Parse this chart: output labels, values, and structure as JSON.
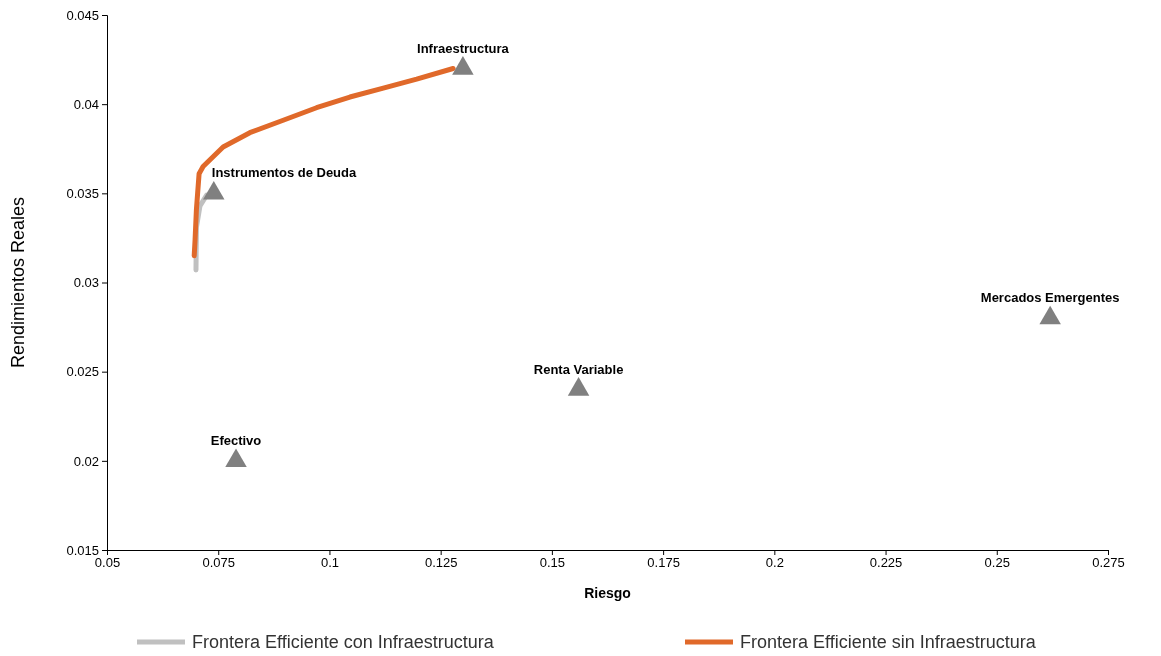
{
  "chart_data": {
    "type": "line",
    "xlabel": "Riesgo",
    "ylabel": "Rendimientos Reales",
    "xlim": [
      0.05,
      0.275
    ],
    "xticks": [
      0.05,
      0.075,
      0.1,
      0.125,
      0.15,
      0.175,
      0.2,
      0.225,
      0.25,
      0.275
    ],
    "ylim": [
      0.015,
      0.045
    ],
    "yticks": [
      0.015,
      0.02,
      0.025,
      0.03,
      0.035,
      0.04,
      0.045
    ],
    "grid": false,
    "legend": "bottom",
    "line_style": "solid",
    "series": [
      {
        "name": "Frontera Efficiente con Infraestructura",
        "marker": "none",
        "color": "#c0c0c0",
        "x": [
          0.07,
          0.0701,
          0.0709,
          0.0724
        ],
        "values": [
          0.0307,
          0.0331,
          0.0343,
          0.0349
        ]
      },
      {
        "name": "Frontera Efficiente sin Infraestructura",
        "marker": "none",
        "color": "#e0692a",
        "x": [
          0.0696,
          0.0698,
          0.0701,
          0.0707,
          0.0716,
          0.0761,
          0.0821,
          0.0896,
          0.0971,
          0.1046,
          0.1121,
          0.1196,
          0.1278
        ],
        "values": [
          0.0315,
          0.0324,
          0.0341,
          0.0361,
          0.0365,
          0.0376,
          0.0384,
          0.0391,
          0.0398,
          0.0404,
          0.0409,
          0.0414,
          0.042
        ]
      },
      {
        "type": "scatter",
        "marker": "triangle",
        "color": "#808080",
        "x": [
          0.13,
          0.074,
          0.079,
          0.156,
          0.262
        ],
        "values": [
          0.042,
          0.035,
          0.02,
          0.024,
          0.028
        ]
      }
    ],
    "annotations": [
      {
        "text": "Infraestructura",
        "x": 0.13,
        "y": 0.042
      },
      {
        "text": "Instrumentos de Deuda",
        "x": 0.074,
        "y": 0.035
      },
      {
        "text": "Efectivo",
        "x": 0.079,
        "y": 0.02
      },
      {
        "text": "Renta Variable",
        "x": 0.156,
        "y": 0.024
      },
      {
        "text": "Mercados Emergentes",
        "x": 0.262,
        "y": 0.028
      }
    ]
  }
}
